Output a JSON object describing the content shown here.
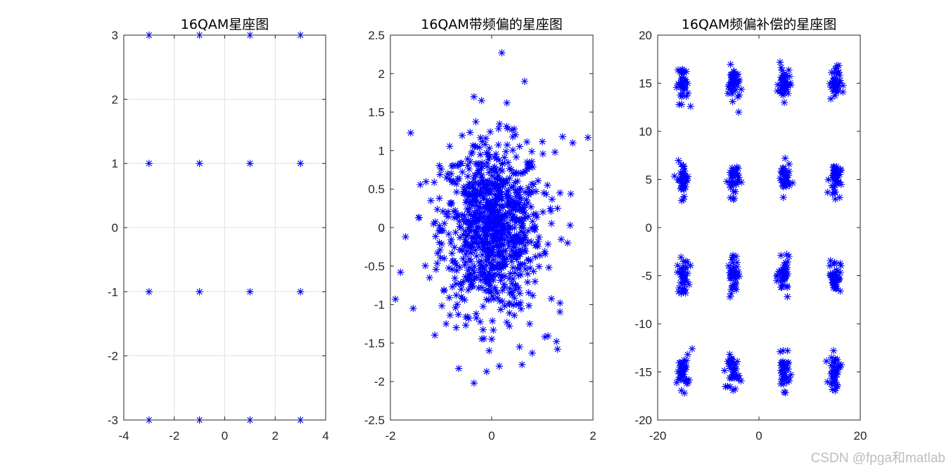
{
  "watermark": "CSDN @fpga和matlab",
  "marker_color": "#0000ff",
  "chart_data": [
    {
      "type": "scatter",
      "title": "16QAM星座图",
      "xlabel": "",
      "ylabel": "",
      "xlim": [
        -4,
        4
      ],
      "ylim": [
        -3,
        3
      ],
      "xticks": [
        -4,
        -2,
        0,
        2,
        4
      ],
      "yticks": [
        -3,
        -2,
        -1,
        0,
        1,
        2,
        3
      ],
      "grid": true,
      "marker": "*",
      "points": [
        [
          -3,
          3
        ],
        [
          -1,
          3
        ],
        [
          1,
          3
        ],
        [
          3,
          3
        ],
        [
          -3,
          1
        ],
        [
          -1,
          1
        ],
        [
          1,
          1
        ],
        [
          3,
          1
        ],
        [
          -3,
          -1
        ],
        [
          -1,
          -1
        ],
        [
          1,
          -1
        ],
        [
          3,
          -1
        ],
        [
          -3,
          -3
        ],
        [
          -1,
          -3
        ],
        [
          1,
          -3
        ],
        [
          3,
          -3
        ]
      ]
    },
    {
      "type": "scatter",
      "title": "16QAM带频偏的星座图",
      "xlabel": "",
      "ylabel": "",
      "xlim": [
        -2,
        2
      ],
      "ylim": [
        -2.5,
        2.5
      ],
      "xticks": [
        -2,
        0,
        2
      ],
      "yticks": [
        -2.5,
        -2,
        -1.5,
        -1,
        -0.5,
        0,
        0.5,
        1,
        1.5,
        2,
        2.5
      ],
      "grid": false,
      "marker": "*",
      "distribution": {
        "shape": "gaussian-cloud",
        "center": [
          0,
          0
        ],
        "std": 0.55,
        "count": 900
      },
      "points": [
        [
          0.2,
          2.27
        ],
        [
          0.65,
          1.9
        ],
        [
          -1.6,
          1.23
        ],
        [
          1.4,
          1.18
        ],
        [
          1.9,
          1.17
        ],
        [
          1.6,
          1.1
        ],
        [
          -0.35,
          1.7
        ],
        [
          0.3,
          1.62
        ],
        [
          -0.2,
          1.65
        ],
        [
          1.25,
          0.98
        ],
        [
          -0.8,
          0.7
        ],
        [
          -1.2,
          0.35
        ],
        [
          -1.7,
          -0.12
        ],
        [
          -1.8,
          -0.58
        ],
        [
          -1.9,
          -0.93
        ],
        [
          -1.55,
          -1.05
        ],
        [
          -0.9,
          -1.25
        ],
        [
          -0.7,
          -1.3
        ],
        [
          -0.45,
          -1.18
        ],
        [
          -0.35,
          -2.02
        ],
        [
          -0.65,
          -1.83
        ],
        [
          -0.05,
          -1.6
        ],
        [
          0.0,
          -1.45
        ],
        [
          0.15,
          -1.8
        ],
        [
          -0.1,
          -1.87
        ],
        [
          0.55,
          -1.55
        ],
        [
          0.6,
          -1.78
        ],
        [
          0.8,
          -1.63
        ],
        [
          0.75,
          -1.25
        ],
        [
          1.05,
          -1.42
        ],
        [
          1.28,
          -1.48
        ],
        [
          1.3,
          -1.58
        ],
        [
          1.35,
          -0.98
        ],
        [
          1.5,
          -0.2
        ],
        [
          1.55,
          0.03
        ],
        [
          1.35,
          0.45
        ],
        [
          1.3,
          0.25
        ],
        [
          0.35,
          -1.28
        ]
      ]
    },
    {
      "type": "scatter",
      "title": "16QAM频偏补偿的星座图",
      "xlabel": "",
      "ylabel": "",
      "xlim": [
        -20,
        20
      ],
      "ylim": [
        -20,
        20
      ],
      "xticks": [
        -20,
        0,
        20
      ],
      "yticks": [
        -20,
        -15,
        -10,
        -5,
        0,
        5,
        10,
        15,
        20
      ],
      "grid": false,
      "marker": "*",
      "cluster_centers": [
        -15,
        -5,
        5,
        15
      ],
      "cluster_spread": 0.7,
      "points_per_cluster": 40,
      "outliers": [
        [
          -4,
          12
        ],
        [
          -13.5,
          12.6
        ],
        [
          -4.5,
          -3
        ],
        [
          -14.5,
          -6.8
        ],
        [
          4.5,
          -6.2
        ],
        [
          -5.2,
          13.1
        ],
        [
          5,
          13
        ],
        [
          -13.2,
          -12.6
        ],
        [
          4.2,
          -12.9
        ]
      ]
    }
  ]
}
